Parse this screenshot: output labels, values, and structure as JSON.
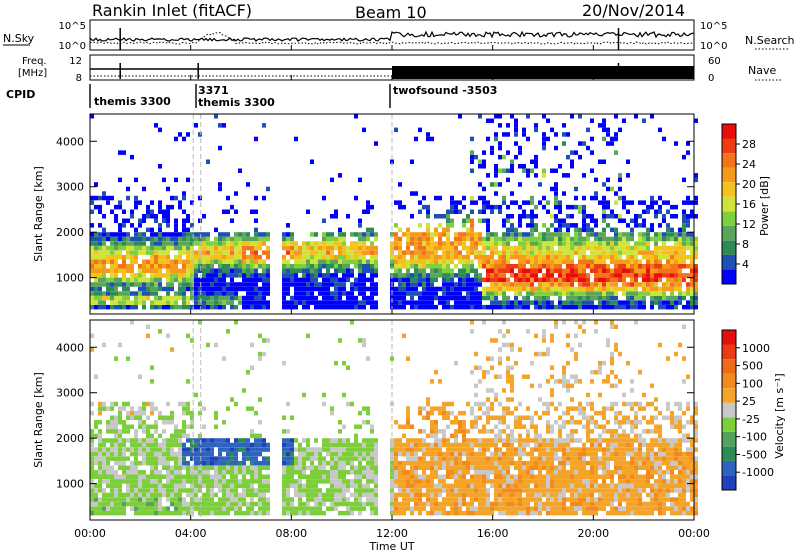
{
  "header": {
    "title": "Rankin Inlet (fitACF)",
    "beam": "Beam 10",
    "date": "20/Nov/2014"
  },
  "panels": {
    "nsky": {
      "left_label": "N.Sky",
      "left_ticks": [
        "10^5",
        "10^0"
      ],
      "right_ticks": [
        "10^5",
        "10^0"
      ],
      "right_label": "N.Search"
    },
    "freq": {
      "left_label_top": "Freq.",
      "left_label_bottom": "[MHz]",
      "left_ticks": [
        "12",
        "8"
      ],
      "right_ticks": [
        "60",
        "0"
      ],
      "right_label": "Nave"
    },
    "cpid": {
      "label": "CPID",
      "segments": [
        "themis 3300",
        "3371",
        "themis 3300",
        "twofsound -3503"
      ]
    }
  },
  "chart_data": [
    {
      "type": "heatmap",
      "quantity": "Power",
      "ylabel": "Slant Range [km]",
      "ylim": [
        200,
        4600
      ],
      "yticks": [
        1000,
        2000,
        3000,
        4000
      ],
      "xlim_hours": [
        0,
        24
      ],
      "colorbar": {
        "label": "Power [dB]",
        "ticks": [
          "28",
          "24",
          "20",
          "16",
          "12",
          "8",
          "4"
        ],
        "colors": [
          "#0000ff",
          "#1e4fb4",
          "#2e8b57",
          "#5aa55a",
          "#7fcf3f",
          "#cfe43a",
          "#f3c21e",
          "#f59b1a",
          "#f3741a",
          "#ef3b14",
          "#e80e0e"
        ]
      }
    },
    {
      "type": "heatmap",
      "quantity": "Velocity",
      "ylabel": "Slant Range [km]",
      "ylim": [
        200,
        4600
      ],
      "yticks": [
        1000,
        2000,
        3000,
        4000
      ],
      "xlim_hours": [
        0,
        24
      ],
      "colorbar": {
        "label": "Velocity [m s⁻¹]",
        "ticks": [
          "1000",
          "500",
          "100",
          "25",
          "-25",
          "-100",
          "-500",
          "-1000"
        ],
        "colors": [
          "#2141b8",
          "#2e64c0",
          "#2e8b57",
          "#55a35a",
          "#7ccf3a",
          "#c8c8c8",
          "#f4a428",
          "#f28a1e",
          "#ef6a18",
          "#ea3b14",
          "#e31010"
        ]
      }
    }
  ],
  "xaxis": {
    "ticks": [
      "00:00",
      "04:00",
      "08:00",
      "12:00",
      "16:00",
      "20:00",
      "00:00"
    ],
    "label": "Time UT"
  }
}
